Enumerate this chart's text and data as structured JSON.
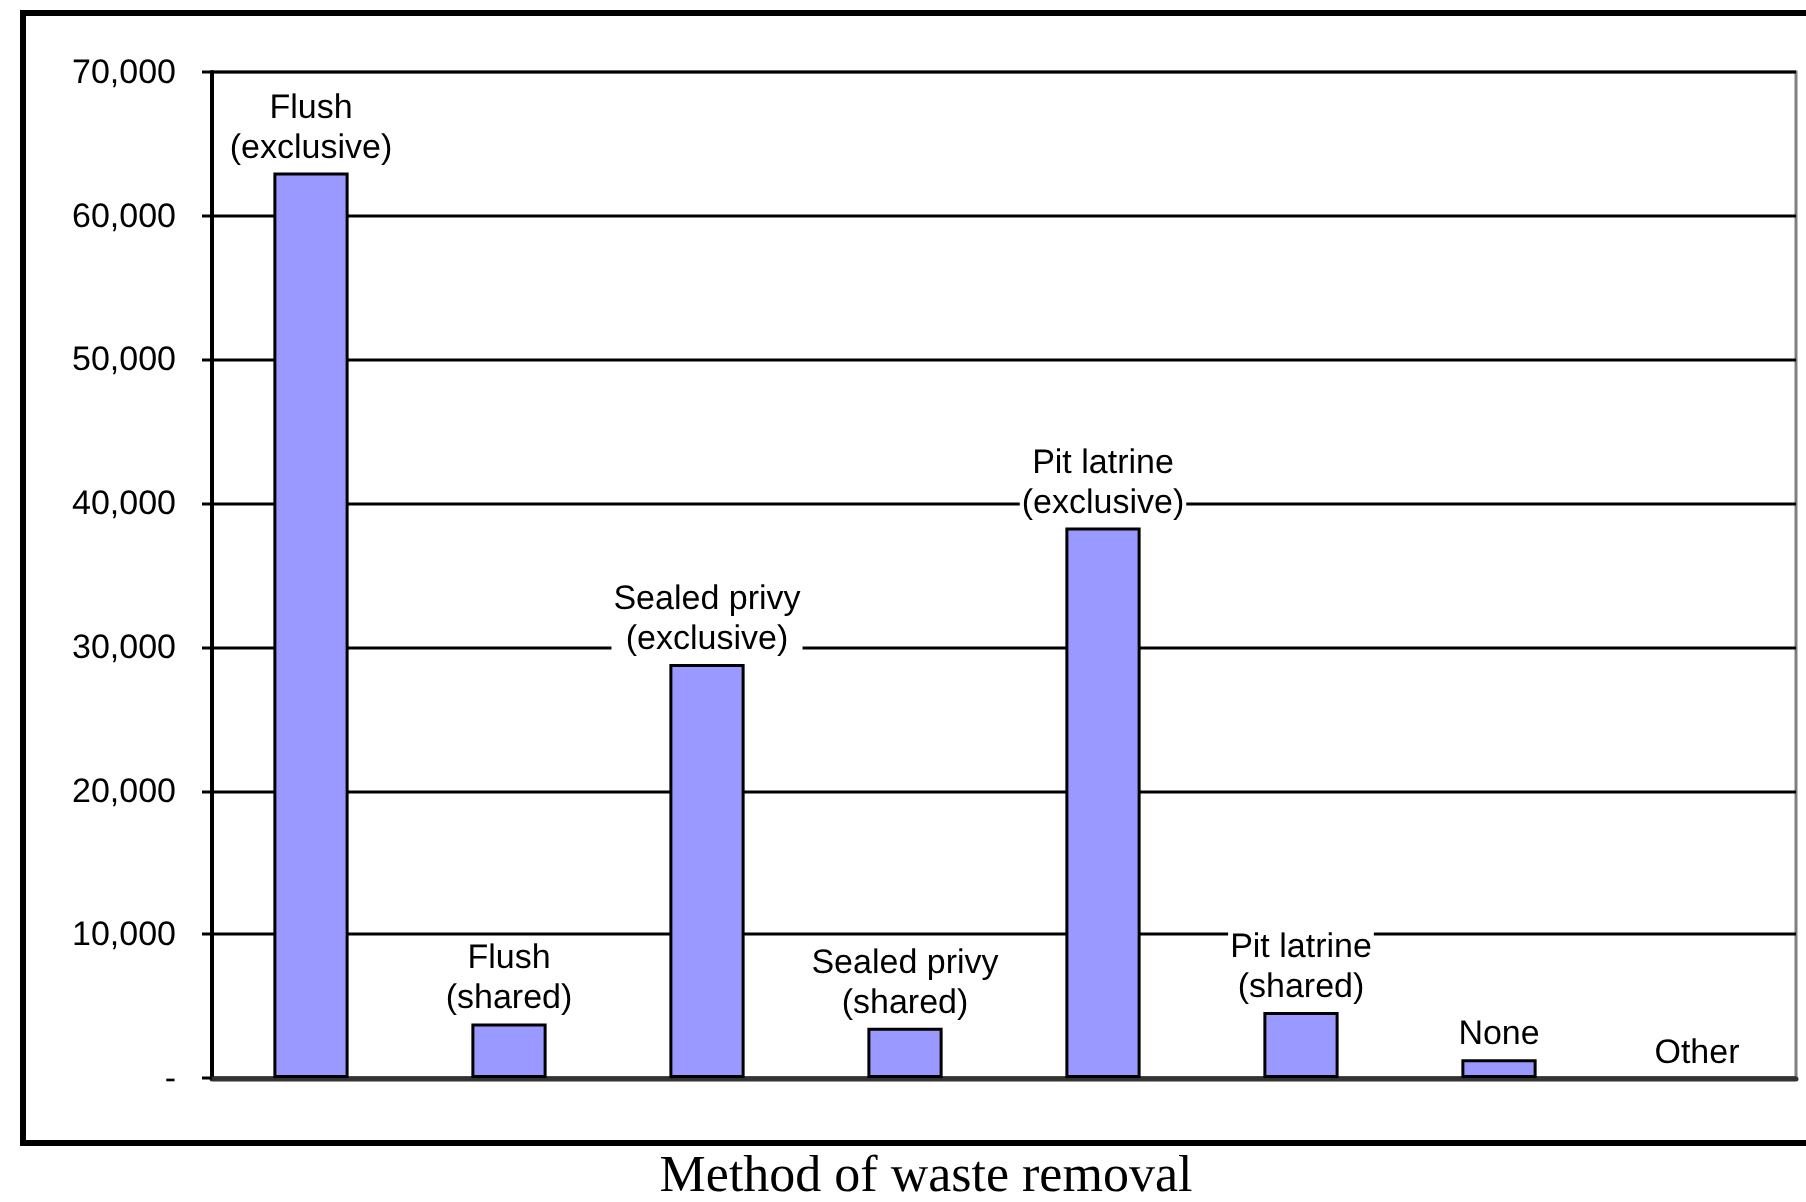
{
  "chart_data": {
    "type": "bar",
    "categories": [
      "Flush (exclusive)",
      "Flush (shared)",
      "Sealed privy (exclusive)",
      "Sealed privy (shared)",
      "Pit latrine (exclusive)",
      "Pit latrine (shared)",
      "None",
      "Other"
    ],
    "values": [
      63000,
      3800,
      28800,
      3500,
      38300,
      4600,
      1300,
      null
    ],
    "color": "#9999ff",
    "xlabel": "Method of waste removal",
    "ylim": [
      0,
      70000
    ],
    "yticks": [
      {
        "value": 0,
        "label": "-"
      },
      {
        "value": 10000,
        "label": "10,000"
      },
      {
        "value": 20000,
        "label": "20,000"
      },
      {
        "value": 30000,
        "label": "30,000"
      },
      {
        "value": 40000,
        "label": "40,000"
      },
      {
        "value": 50000,
        "label": "50,000"
      },
      {
        "value": 60000,
        "label": "60,000"
      },
      {
        "value": 70000,
        "label": "70,000"
      }
    ],
    "grid": "y",
    "tick_labels": "y"
  }
}
